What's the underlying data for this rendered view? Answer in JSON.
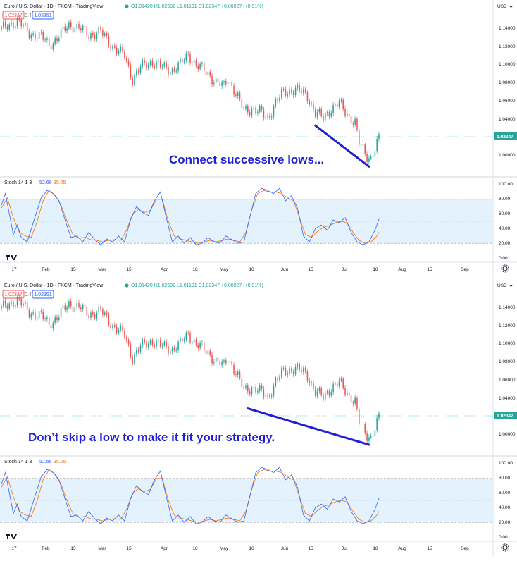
{
  "colors": {
    "up": "#26a69a",
    "down": "#ef5350",
    "trend": "#1f1fd6",
    "k_line": "#2962ff",
    "d_line": "#ff6d00",
    "band": "#e3f2fd"
  },
  "header": {
    "symbol_title": "Euro / U.S. Dollar · 1D · FXCM · TradingView",
    "ohlc": "O1.01420 H1.02692 L1.01191 C1.02347 +0.00927 (+0.91%)",
    "sell_price": "1.02347",
    "spread": "0.4",
    "buy_price": "1.02351",
    "currency": "USD"
  },
  "price_badge": "1.02347",
  "stoch_header": {
    "name": "Stoch 14 1 3",
    "k_value": "52.66",
    "d_value": "35.25"
  },
  "panels": [
    {
      "annotation": "Connect successive lows..."
    },
    {
      "annotation": "Don’t skip a low to make it fit your strategy."
    }
  ],
  "price_axis": [
    "1.14000",
    "1.12000",
    "1.10000",
    "1.08000",
    "1.06000",
    "1.04000",
    "1.02000",
    "1.00000"
  ],
  "stoch_axis": [
    "100.00",
    "80.00",
    "60.00",
    "40.00",
    "20.00",
    "0.00"
  ],
  "time_axis": [
    "17",
    "Feb",
    "15",
    "Mar",
    "15",
    "Apr",
    "18",
    "May",
    "16",
    "Jun",
    "15",
    "Jul",
    "18",
    "Aug",
    "15",
    "Sep"
  ],
  "icons": [
    "tradingview-logo-icon",
    "settings-gear-icon",
    "dropdown-chevron-icon"
  ],
  "chart_data": {
    "type": "candlestick",
    "title": "Euro / U.S. Dollar · 1D · FXCM · TradingView",
    "ylim": [
      0.995,
      1.148
    ],
    "close_path": [
      [
        0,
        1.138
      ],
      [
        8,
        1.147
      ],
      [
        14,
        1.134
      ],
      [
        20,
        1.13
      ],
      [
        24,
        1.122
      ],
      [
        28,
        1.128
      ],
      [
        34,
        1.143
      ],
      [
        40,
        1.138
      ],
      [
        44,
        1.132
      ],
      [
        50,
        1.135
      ],
      [
        56,
        1.12
      ],
      [
        62,
        1.11
      ],
      [
        66,
        1.086
      ],
      [
        70,
        1.098
      ],
      [
        76,
        1.104
      ],
      [
        80,
        1.099
      ],
      [
        86,
        1.095
      ],
      [
        90,
        1.101
      ],
      [
        94,
        1.112
      ],
      [
        98,
        1.1
      ],
      [
        104,
        1.092
      ],
      [
        108,
        1.082
      ],
      [
        112,
        1.078
      ],
      [
        114,
        1.087
      ],
      [
        118,
        1.07
      ],
      [
        122,
        1.053
      ],
      [
        126,
        1.055
      ],
      [
        130,
        1.051
      ],
      [
        134,
        1.045
      ],
      [
        138,
        1.061
      ],
      [
        142,
        1.072
      ],
      [
        148,
        1.075
      ],
      [
        152,
        1.071
      ],
      [
        154,
        1.068
      ],
      [
        158,
        1.05
      ],
      [
        162,
        1.045
      ],
      [
        166,
        1.055
      ],
      [
        170,
        1.06
      ],
      [
        174,
        1.049
      ],
      [
        178,
        1.04
      ],
      [
        180,
        1.018
      ],
      [
        184,
        1.005
      ],
      [
        186,
        1.003
      ],
      [
        188,
        1.013
      ],
      [
        190,
        1.023
      ]
    ],
    "trendlines": [
      {
        "panel": 1,
        "from": [
          158,
          1.037
        ],
        "to": [
          185,
          0.994
        ]
      },
      {
        "panel": 2,
        "from": [
          124,
          1.033
        ],
        "to": [
          185,
          0.995
        ]
      }
    ],
    "stochastic": {
      "name": "Stoch 14 1 3",
      "ylim": [
        0,
        100
      ],
      "bands": [
        20,
        50,
        80
      ],
      "k_path": [
        [
          0,
          72
        ],
        [
          2,
          88
        ],
        [
          4,
          60
        ],
        [
          6,
          32
        ],
        [
          8,
          45
        ],
        [
          10,
          28
        ],
        [
          13,
          22
        ],
        [
          16,
          48
        ],
        [
          20,
          82
        ],
        [
          23,
          92
        ],
        [
          26,
          88
        ],
        [
          29,
          78
        ],
        [
          32,
          52
        ],
        [
          35,
          28
        ],
        [
          38,
          30
        ],
        [
          41,
          22
        ],
        [
          44,
          35
        ],
        [
          47,
          25
        ],
        [
          50,
          18
        ],
        [
          53,
          26
        ],
        [
          56,
          22
        ],
        [
          59,
          30
        ],
        [
          62,
          22
        ],
        [
          65,
          52
        ],
        [
          68,
          70
        ],
        [
          71,
          62
        ],
        [
          74,
          58
        ],
        [
          77,
          78
        ],
        [
          80,
          90
        ],
        [
          83,
          55
        ],
        [
          86,
          22
        ],
        [
          89,
          30
        ],
        [
          92,
          20
        ],
        [
          95,
          28
        ],
        [
          98,
          18
        ],
        [
          101,
          20
        ],
        [
          104,
          28
        ],
        [
          107,
          22
        ],
        [
          110,
          20
        ],
        [
          113,
          30
        ],
        [
          116,
          25
        ],
        [
          119,
          20
        ],
        [
          122,
          22
        ],
        [
          125,
          55
        ],
        [
          128,
          88
        ],
        [
          131,
          95
        ],
        [
          134,
          92
        ],
        [
          137,
          88
        ],
        [
          140,
          95
        ],
        [
          143,
          78
        ],
        [
          146,
          85
        ],
        [
          149,
          68
        ],
        [
          152,
          30
        ],
        [
          155,
          22
        ],
        [
          158,
          40
        ],
        [
          161,
          45
        ],
        [
          164,
          38
        ],
        [
          167,
          52
        ],
        [
          170,
          48
        ],
        [
          173,
          55
        ],
        [
          176,
          35
        ],
        [
          179,
          22
        ],
        [
          182,
          18
        ],
        [
          185,
          22
        ],
        [
          188,
          38
        ],
        [
          190,
          53
        ]
      ],
      "d_path": [
        [
          0,
          68
        ],
        [
          3,
          82
        ],
        [
          6,
          55
        ],
        [
          9,
          35
        ],
        [
          12,
          30
        ],
        [
          15,
          28
        ],
        [
          18,
          50
        ],
        [
          21,
          78
        ],
        [
          24,
          92
        ],
        [
          27,
          86
        ],
        [
          30,
          72
        ],
        [
          33,
          50
        ],
        [
          36,
          32
        ],
        [
          39,
          27
        ],
        [
          42,
          28
        ],
        [
          45,
          25
        ],
        [
          48,
          24
        ],
        [
          51,
          22
        ],
        [
          54,
          24
        ],
        [
          57,
          25
        ],
        [
          60,
          24
        ],
        [
          63,
          38
        ],
        [
          66,
          60
        ],
        [
          69,
          66
        ],
        [
          72,
          62
        ],
        [
          75,
          65
        ],
        [
          78,
          80
        ],
        [
          81,
          80
        ],
        [
          84,
          50
        ],
        [
          87,
          30
        ],
        [
          90,
          26
        ],
        [
          93,
          24
        ],
        [
          96,
          22
        ],
        [
          99,
          20
        ],
        [
          102,
          22
        ],
        [
          105,
          24
        ],
        [
          108,
          22
        ],
        [
          111,
          24
        ],
        [
          114,
          26
        ],
        [
          117,
          24
        ],
        [
          120,
          22
        ],
        [
          123,
          35
        ],
        [
          126,
          66
        ],
        [
          129,
          88
        ],
        [
          132,
          92
        ],
        [
          135,
          90
        ],
        [
          138,
          90
        ],
        [
          141,
          88
        ],
        [
          144,
          82
        ],
        [
          147,
          78
        ],
        [
          150,
          55
        ],
        [
          153,
          32
        ],
        [
          156,
          28
        ],
        [
          159,
          36
        ],
        [
          162,
          42
        ],
        [
          165,
          44
        ],
        [
          168,
          48
        ],
        [
          171,
          50
        ],
        [
          174,
          48
        ],
        [
          177,
          35
        ],
        [
          180,
          24
        ],
        [
          183,
          20
        ],
        [
          186,
          22
        ],
        [
          189,
          30
        ],
        [
          190,
          35
        ]
      ]
    }
  }
}
